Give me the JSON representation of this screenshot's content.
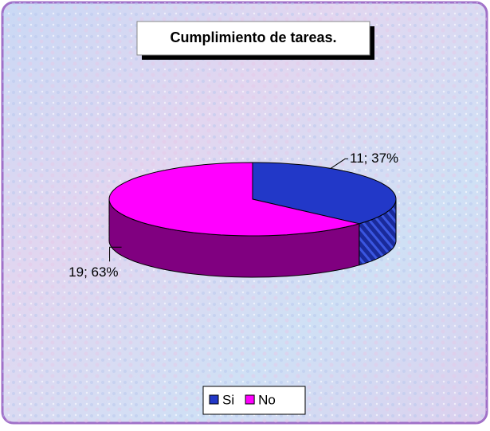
{
  "chart_data": {
    "type": "pie",
    "title": "Cumplimiento de tareas.",
    "categories": [
      "Si",
      "No"
    ],
    "values": [
      11,
      19
    ],
    "value_labels": [
      "11; 37%",
      "19; 63%"
    ],
    "colors": [
      "#2238c8",
      "#ff00ff"
    ],
    "legend": "bottom",
    "style": "3d"
  }
}
